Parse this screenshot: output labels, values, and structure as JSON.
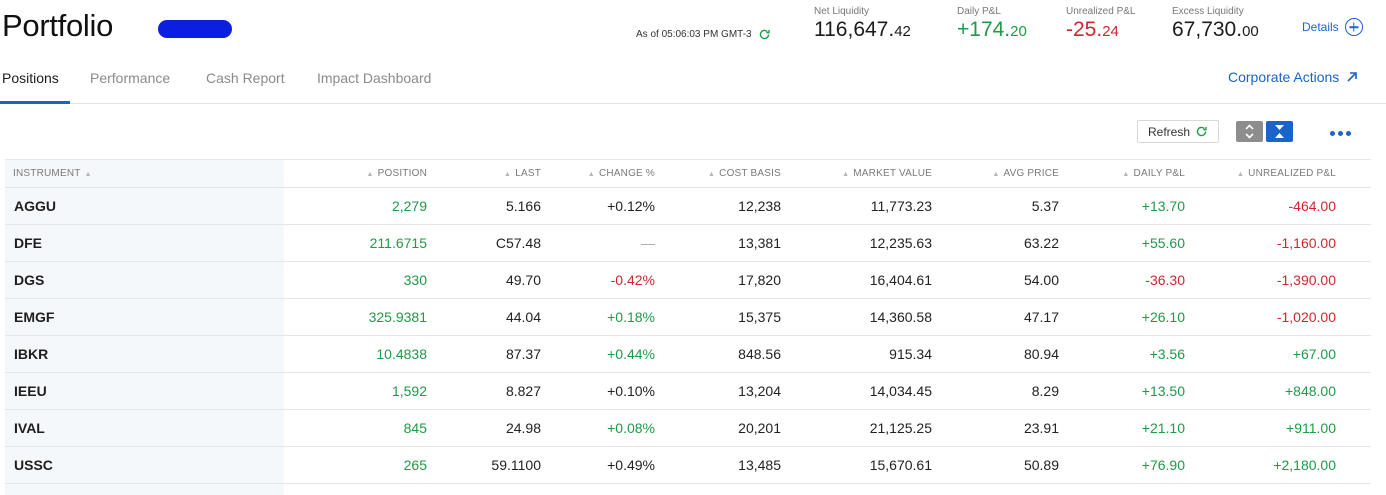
{
  "header": {
    "title": "Portfolio",
    "as_of": "As of 05:06:03 PM GMT-3",
    "details_label": "Details",
    "metrics": [
      {
        "label": "Net Liquidity",
        "int": "116,647.",
        "dec": "42",
        "tone": "dark"
      },
      {
        "label": "Daily P&L",
        "int": "+174.",
        "dec": "20",
        "tone": "pos"
      },
      {
        "label": "Unrealized P&L",
        "int": "-25.",
        "dec": "24",
        "tone": "neg"
      },
      {
        "label": "Excess Liquidity",
        "int": "67,730.",
        "dec": "00",
        "tone": "dark"
      }
    ]
  },
  "tabs": [
    "Positions",
    "Performance",
    "Cash Report",
    "Impact Dashboard"
  ],
  "corporate_actions_label": "Corporate Actions",
  "toolbar": {
    "refresh_label": "Refresh"
  },
  "table": {
    "columns": [
      "INSTRUMENT",
      "POSITION",
      "LAST",
      "CHANGE %",
      "COST BASIS",
      "MARKET VALUE",
      "AVG PRICE",
      "DAILY P&L",
      "UNREALIZED P&L"
    ],
    "rows": [
      {
        "instrument": "AGGU",
        "position": "2,279",
        "last": "5.166",
        "change": "+0.12%",
        "change_tone": "neutral",
        "cost_basis": "12,238",
        "market_value": "11,773.23",
        "avg_price": "5.37",
        "daily_pl": "+13.70",
        "daily_tone": "pos",
        "unrealized_pl": "-464.00",
        "unreal_tone": "neg"
      },
      {
        "instrument": "DFE",
        "position": "211.6715",
        "last": "C57.48",
        "change": "—",
        "change_tone": "muted",
        "cost_basis": "13,381",
        "market_value": "12,235.63",
        "avg_price": "63.22",
        "daily_pl": "+55.60",
        "daily_tone": "pos",
        "unrealized_pl": "-1,160.00",
        "unreal_tone": "neg"
      },
      {
        "instrument": "DGS",
        "position": "330",
        "last": "49.70",
        "change": "-0.42%",
        "change_tone": "neg",
        "cost_basis": "17,820",
        "market_value": "16,404.61",
        "avg_price": "54.00",
        "daily_pl": "-36.30",
        "daily_tone": "neg",
        "unrealized_pl": "-1,390.00",
        "unreal_tone": "neg"
      },
      {
        "instrument": "EMGF",
        "position": "325.9381",
        "last": "44.04",
        "change": "+0.18%",
        "change_tone": "pos",
        "cost_basis": "15,375",
        "market_value": "14,360.58",
        "avg_price": "47.17",
        "daily_pl": "+26.10",
        "daily_tone": "pos",
        "unrealized_pl": "-1,020.00",
        "unreal_tone": "neg"
      },
      {
        "instrument": "IBKR",
        "position": "10.4838",
        "last": "87.37",
        "change": "+0.44%",
        "change_tone": "pos",
        "cost_basis": "848.56",
        "market_value": "915.34",
        "avg_price": "80.94",
        "daily_pl": "+3.56",
        "daily_tone": "pos",
        "unrealized_pl": "+67.00",
        "unreal_tone": "pos"
      },
      {
        "instrument": "IEEU",
        "position": "1,592",
        "last": "8.827",
        "change": "+0.10%",
        "change_tone": "neutral",
        "cost_basis": "13,204",
        "market_value": "14,034.45",
        "avg_price": "8.29",
        "daily_pl": "+13.50",
        "daily_tone": "pos",
        "unrealized_pl": "+848.00",
        "unreal_tone": "pos"
      },
      {
        "instrument": "IVAL",
        "position": "845",
        "last": "24.98",
        "change": "+0.08%",
        "change_tone": "pos",
        "cost_basis": "20,201",
        "market_value": "21,125.25",
        "avg_price": "23.91",
        "daily_pl": "+21.10",
        "daily_tone": "pos",
        "unrealized_pl": "+911.00",
        "unreal_tone": "pos"
      },
      {
        "instrument": "USSC",
        "position": "265",
        "last": "59.1100",
        "change": "+0.49%",
        "change_tone": "neutral",
        "cost_basis": "13,485",
        "market_value": "15,670.61",
        "avg_price": "50.89",
        "daily_pl": "+76.90",
        "daily_tone": "pos",
        "unrealized_pl": "+2,180.00",
        "unreal_tone": "pos"
      }
    ]
  },
  "colors": {
    "accent": "#1a63c8",
    "positive": "#1f9a46",
    "negative": "#d2262f"
  }
}
